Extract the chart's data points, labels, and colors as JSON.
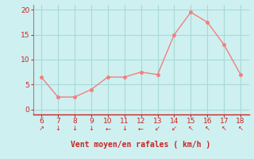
{
  "x": [
    6,
    7,
    8,
    9,
    10,
    11,
    12,
    13,
    14,
    15,
    16,
    17,
    18
  ],
  "y": [
    6.5,
    2.5,
    2.5,
    4.0,
    6.5,
    6.5,
    7.5,
    7.0,
    15.0,
    19.5,
    17.5,
    13.0,
    7.0
  ],
  "line_color": "#f08080",
  "marker_color": "#f08080",
  "bg_color": "#cff0f0",
  "grid_color": "#a8d8d8",
  "axis_color": "#cc2222",
  "xlabel": "Vent moyen/en rafales ( km/h )",
  "xlabel_color": "#cc2222",
  "tick_color": "#cc2222",
  "ylim": [
    -1,
    21
  ],
  "xlim": [
    5.5,
    18.5
  ],
  "yticks": [
    0,
    5,
    10,
    15,
    20
  ],
  "xticks": [
    6,
    7,
    8,
    9,
    10,
    11,
    12,
    13,
    14,
    15,
    16,
    17,
    18
  ],
  "wind_arrows": [
    {
      "x": 6,
      "char": "↗"
    },
    {
      "x": 7,
      "char": "↓"
    },
    {
      "x": 8,
      "char": "↓"
    },
    {
      "x": 9,
      "char": "↓"
    },
    {
      "x": 10,
      "char": "←"
    },
    {
      "x": 11,
      "char": "↓"
    },
    {
      "x": 12,
      "char": "←"
    },
    {
      "x": 13,
      "char": "↙"
    },
    {
      "x": 14,
      "char": "↙"
    },
    {
      "x": 15,
      "char": "↖"
    },
    {
      "x": 16,
      "char": "↖"
    },
    {
      "x": 17,
      "char": "↖"
    },
    {
      "x": 18,
      "char": "↖"
    }
  ]
}
